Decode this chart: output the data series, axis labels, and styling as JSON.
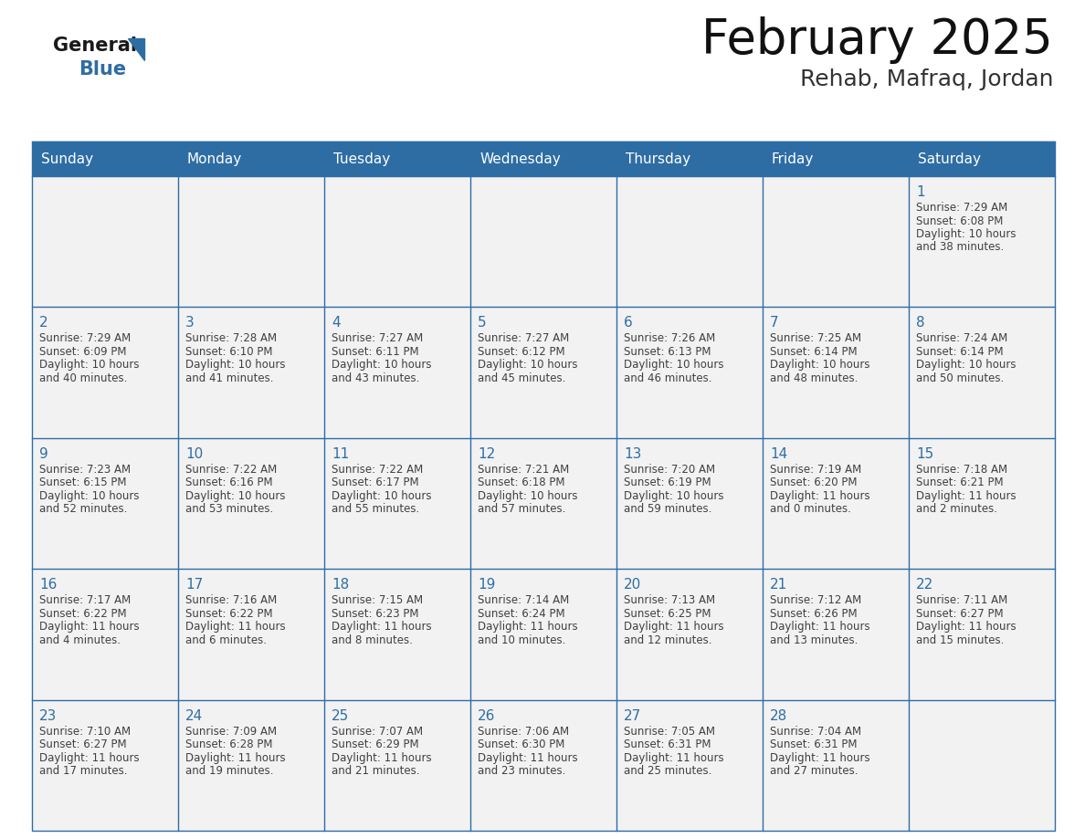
{
  "title": "February 2025",
  "subtitle": "Rehab, Mafraq, Jordan",
  "days_of_week": [
    "Sunday",
    "Monday",
    "Tuesday",
    "Wednesday",
    "Thursday",
    "Friday",
    "Saturday"
  ],
  "header_bg": "#2E6DA4",
  "header_text": "#FFFFFF",
  "cell_bg": "#F2F2F2",
  "border_color": "#2E6DA4",
  "text_color": "#404040",
  "day_num_color": "#2E6DA4",
  "calendar_data": [
    [
      null,
      null,
      null,
      null,
      null,
      null,
      {
        "day": "1",
        "sunrise": "7:29 AM",
        "sunset": "6:08 PM",
        "daylight": "10 hours and 38 minutes."
      }
    ],
    [
      {
        "day": "2",
        "sunrise": "7:29 AM",
        "sunset": "6:09 PM",
        "daylight": "10 hours and 40 minutes."
      },
      {
        "day": "3",
        "sunrise": "7:28 AM",
        "sunset": "6:10 PM",
        "daylight": "10 hours and 41 minutes."
      },
      {
        "day": "4",
        "sunrise": "7:27 AM",
        "sunset": "6:11 PM",
        "daylight": "10 hours and 43 minutes."
      },
      {
        "day": "5",
        "sunrise": "7:27 AM",
        "sunset": "6:12 PM",
        "daylight": "10 hours and 45 minutes."
      },
      {
        "day": "6",
        "sunrise": "7:26 AM",
        "sunset": "6:13 PM",
        "daylight": "10 hours and 46 minutes."
      },
      {
        "day": "7",
        "sunrise": "7:25 AM",
        "sunset": "6:14 PM",
        "daylight": "10 hours and 48 minutes."
      },
      {
        "day": "8",
        "sunrise": "7:24 AM",
        "sunset": "6:14 PM",
        "daylight": "10 hours and 50 minutes."
      }
    ],
    [
      {
        "day": "9",
        "sunrise": "7:23 AM",
        "sunset": "6:15 PM",
        "daylight": "10 hours and 52 minutes."
      },
      {
        "day": "10",
        "sunrise": "7:22 AM",
        "sunset": "6:16 PM",
        "daylight": "10 hours and 53 minutes."
      },
      {
        "day": "11",
        "sunrise": "7:22 AM",
        "sunset": "6:17 PM",
        "daylight": "10 hours and 55 minutes."
      },
      {
        "day": "12",
        "sunrise": "7:21 AM",
        "sunset": "6:18 PM",
        "daylight": "10 hours and 57 minutes."
      },
      {
        "day": "13",
        "sunrise": "7:20 AM",
        "sunset": "6:19 PM",
        "daylight": "10 hours and 59 minutes."
      },
      {
        "day": "14",
        "sunrise": "7:19 AM",
        "sunset": "6:20 PM",
        "daylight": "11 hours and 0 minutes."
      },
      {
        "day": "15",
        "sunrise": "7:18 AM",
        "sunset": "6:21 PM",
        "daylight": "11 hours and 2 minutes."
      }
    ],
    [
      {
        "day": "16",
        "sunrise": "7:17 AM",
        "sunset": "6:22 PM",
        "daylight": "11 hours and 4 minutes."
      },
      {
        "day": "17",
        "sunrise": "7:16 AM",
        "sunset": "6:22 PM",
        "daylight": "11 hours and 6 minutes."
      },
      {
        "day": "18",
        "sunrise": "7:15 AM",
        "sunset": "6:23 PM",
        "daylight": "11 hours and 8 minutes."
      },
      {
        "day": "19",
        "sunrise": "7:14 AM",
        "sunset": "6:24 PM",
        "daylight": "11 hours and 10 minutes."
      },
      {
        "day": "20",
        "sunrise": "7:13 AM",
        "sunset": "6:25 PM",
        "daylight": "11 hours and 12 minutes."
      },
      {
        "day": "21",
        "sunrise": "7:12 AM",
        "sunset": "6:26 PM",
        "daylight": "11 hours and 13 minutes."
      },
      {
        "day": "22",
        "sunrise": "7:11 AM",
        "sunset": "6:27 PM",
        "daylight": "11 hours and 15 minutes."
      }
    ],
    [
      {
        "day": "23",
        "sunrise": "7:10 AM",
        "sunset": "6:27 PM",
        "daylight": "11 hours and 17 minutes."
      },
      {
        "day": "24",
        "sunrise": "7:09 AM",
        "sunset": "6:28 PM",
        "daylight": "11 hours and 19 minutes."
      },
      {
        "day": "25",
        "sunrise": "7:07 AM",
        "sunset": "6:29 PM",
        "daylight": "11 hours and 21 minutes."
      },
      {
        "day": "26",
        "sunrise": "7:06 AM",
        "sunset": "6:30 PM",
        "daylight": "11 hours and 23 minutes."
      },
      {
        "day": "27",
        "sunrise": "7:05 AM",
        "sunset": "6:31 PM",
        "daylight": "11 hours and 25 minutes."
      },
      {
        "day": "28",
        "sunrise": "7:04 AM",
        "sunset": "6:31 PM",
        "daylight": "11 hours and 27 minutes."
      },
      null
    ]
  ]
}
